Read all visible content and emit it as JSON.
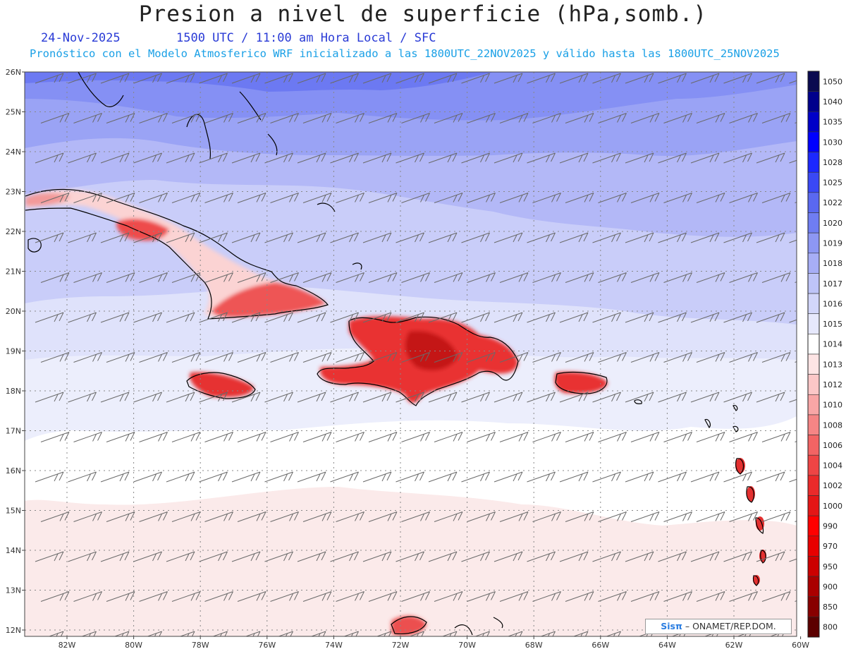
{
  "header": {
    "title": "Presion a nivel de superficie (hPa,somb.)",
    "date": "24-Nov-2025",
    "time_line": "1500 UTC / 11:00 am Hora Local / SFC",
    "model_line": "Pronóstico con el Modelo Atmosferico WRF inicializado a las 1800UTC_22NOV2025 y válido hasta las  1800UTC_25NOV2025"
  },
  "map": {
    "lat_labels": [
      "26N",
      "25N",
      "24N",
      "23N",
      "22N",
      "21N",
      "20N",
      "19N",
      "18N",
      "17N",
      "16N",
      "15N",
      "14N",
      "13N",
      "12N"
    ],
    "lon_labels": [
      "82W",
      "80W",
      "78W",
      "76W",
      "74W",
      "72W",
      "70W",
      "68W",
      "66W",
      "64W",
      "62W",
      "60W"
    ]
  },
  "legend": {
    "levels": [
      "1050",
      "1040",
      "1035",
      "1030",
      "1028",
      "1025",
      "1022",
      "1020",
      "1019",
      "1018",
      "1017",
      "1016",
      "1015",
      "1014",
      "1013",
      "1012",
      "1010",
      "1008",
      "1006",
      "1004",
      "1002",
      "1000",
      "990",
      "970",
      "950",
      "900",
      "850",
      "800"
    ],
    "colors": [
      "#0a0a50",
      "#00008c",
      "#0000c8",
      "#0000ff",
      "#1c28ff",
      "#3a48f5",
      "#5a68f0",
      "#6f7df2",
      "#8d97f3",
      "#a7aef6",
      "#bec4f8",
      "#d2d6fa",
      "#e6e8fc",
      "#ffffff",
      "#fde4e4",
      "#fbc7c7",
      "#f8a6a6",
      "#f58585",
      "#f26464",
      "#ee4545",
      "#ea2a2a",
      "#e41616",
      "#ff0000",
      "#e80000",
      "#cc0000",
      "#aa0000",
      "#880000",
      "#5c0000"
    ]
  },
  "credit": {
    "logo": "Sisπ",
    "text": "–  ONAMET/REP.DOM."
  }
}
